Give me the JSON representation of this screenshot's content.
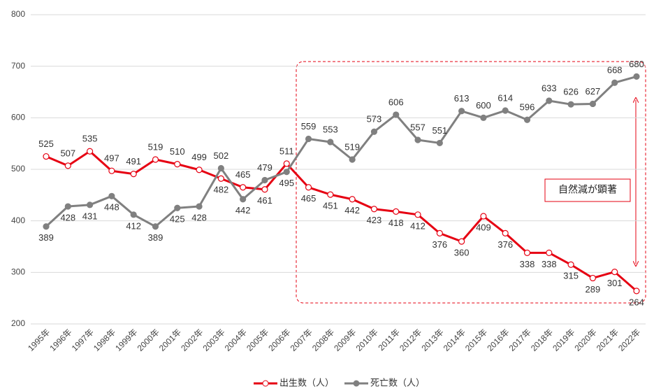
{
  "chart_data": {
    "type": "line",
    "categories": [
      "1995年",
      "1996年",
      "1997年",
      "1998年",
      "1999年",
      "2000年",
      "2001年",
      "2002年",
      "2003年",
      "2004年",
      "2005年",
      "2006年",
      "2007年",
      "2008年",
      "2009年",
      "2010年",
      "2011年",
      "2012年",
      "2013年",
      "2014年",
      "2015年",
      "2016年",
      "2017年",
      "2018年",
      "2019年",
      "2020年",
      "2021年",
      "2022年"
    ],
    "series": [
      {
        "name": "出生数（人）",
        "color": "#e60012",
        "values": [
          525,
          507,
          535,
          497,
          491,
          519,
          510,
          499,
          482,
          465,
          461,
          511,
          465,
          451,
          442,
          423,
          418,
          412,
          376,
          360,
          409,
          376,
          338,
          338,
          315,
          289,
          301,
          264
        ]
      },
      {
        "name": "死亡数（人）",
        "color": "#808080",
        "values": [
          389,
          428,
          431,
          448,
          412,
          389,
          425,
          428,
          502,
          442,
          479,
          495,
          559,
          553,
          519,
          573,
          606,
          557,
          551,
          613,
          600,
          614,
          596,
          633,
          626,
          627,
          668,
          680
        ]
      }
    ],
    "ylim": [
      200,
      800
    ],
    "yticks": [
      200,
      300,
      400,
      500,
      600,
      700,
      800
    ],
    "grid": true,
    "annotation": "自然減が顕著",
    "legend": "bottom"
  }
}
